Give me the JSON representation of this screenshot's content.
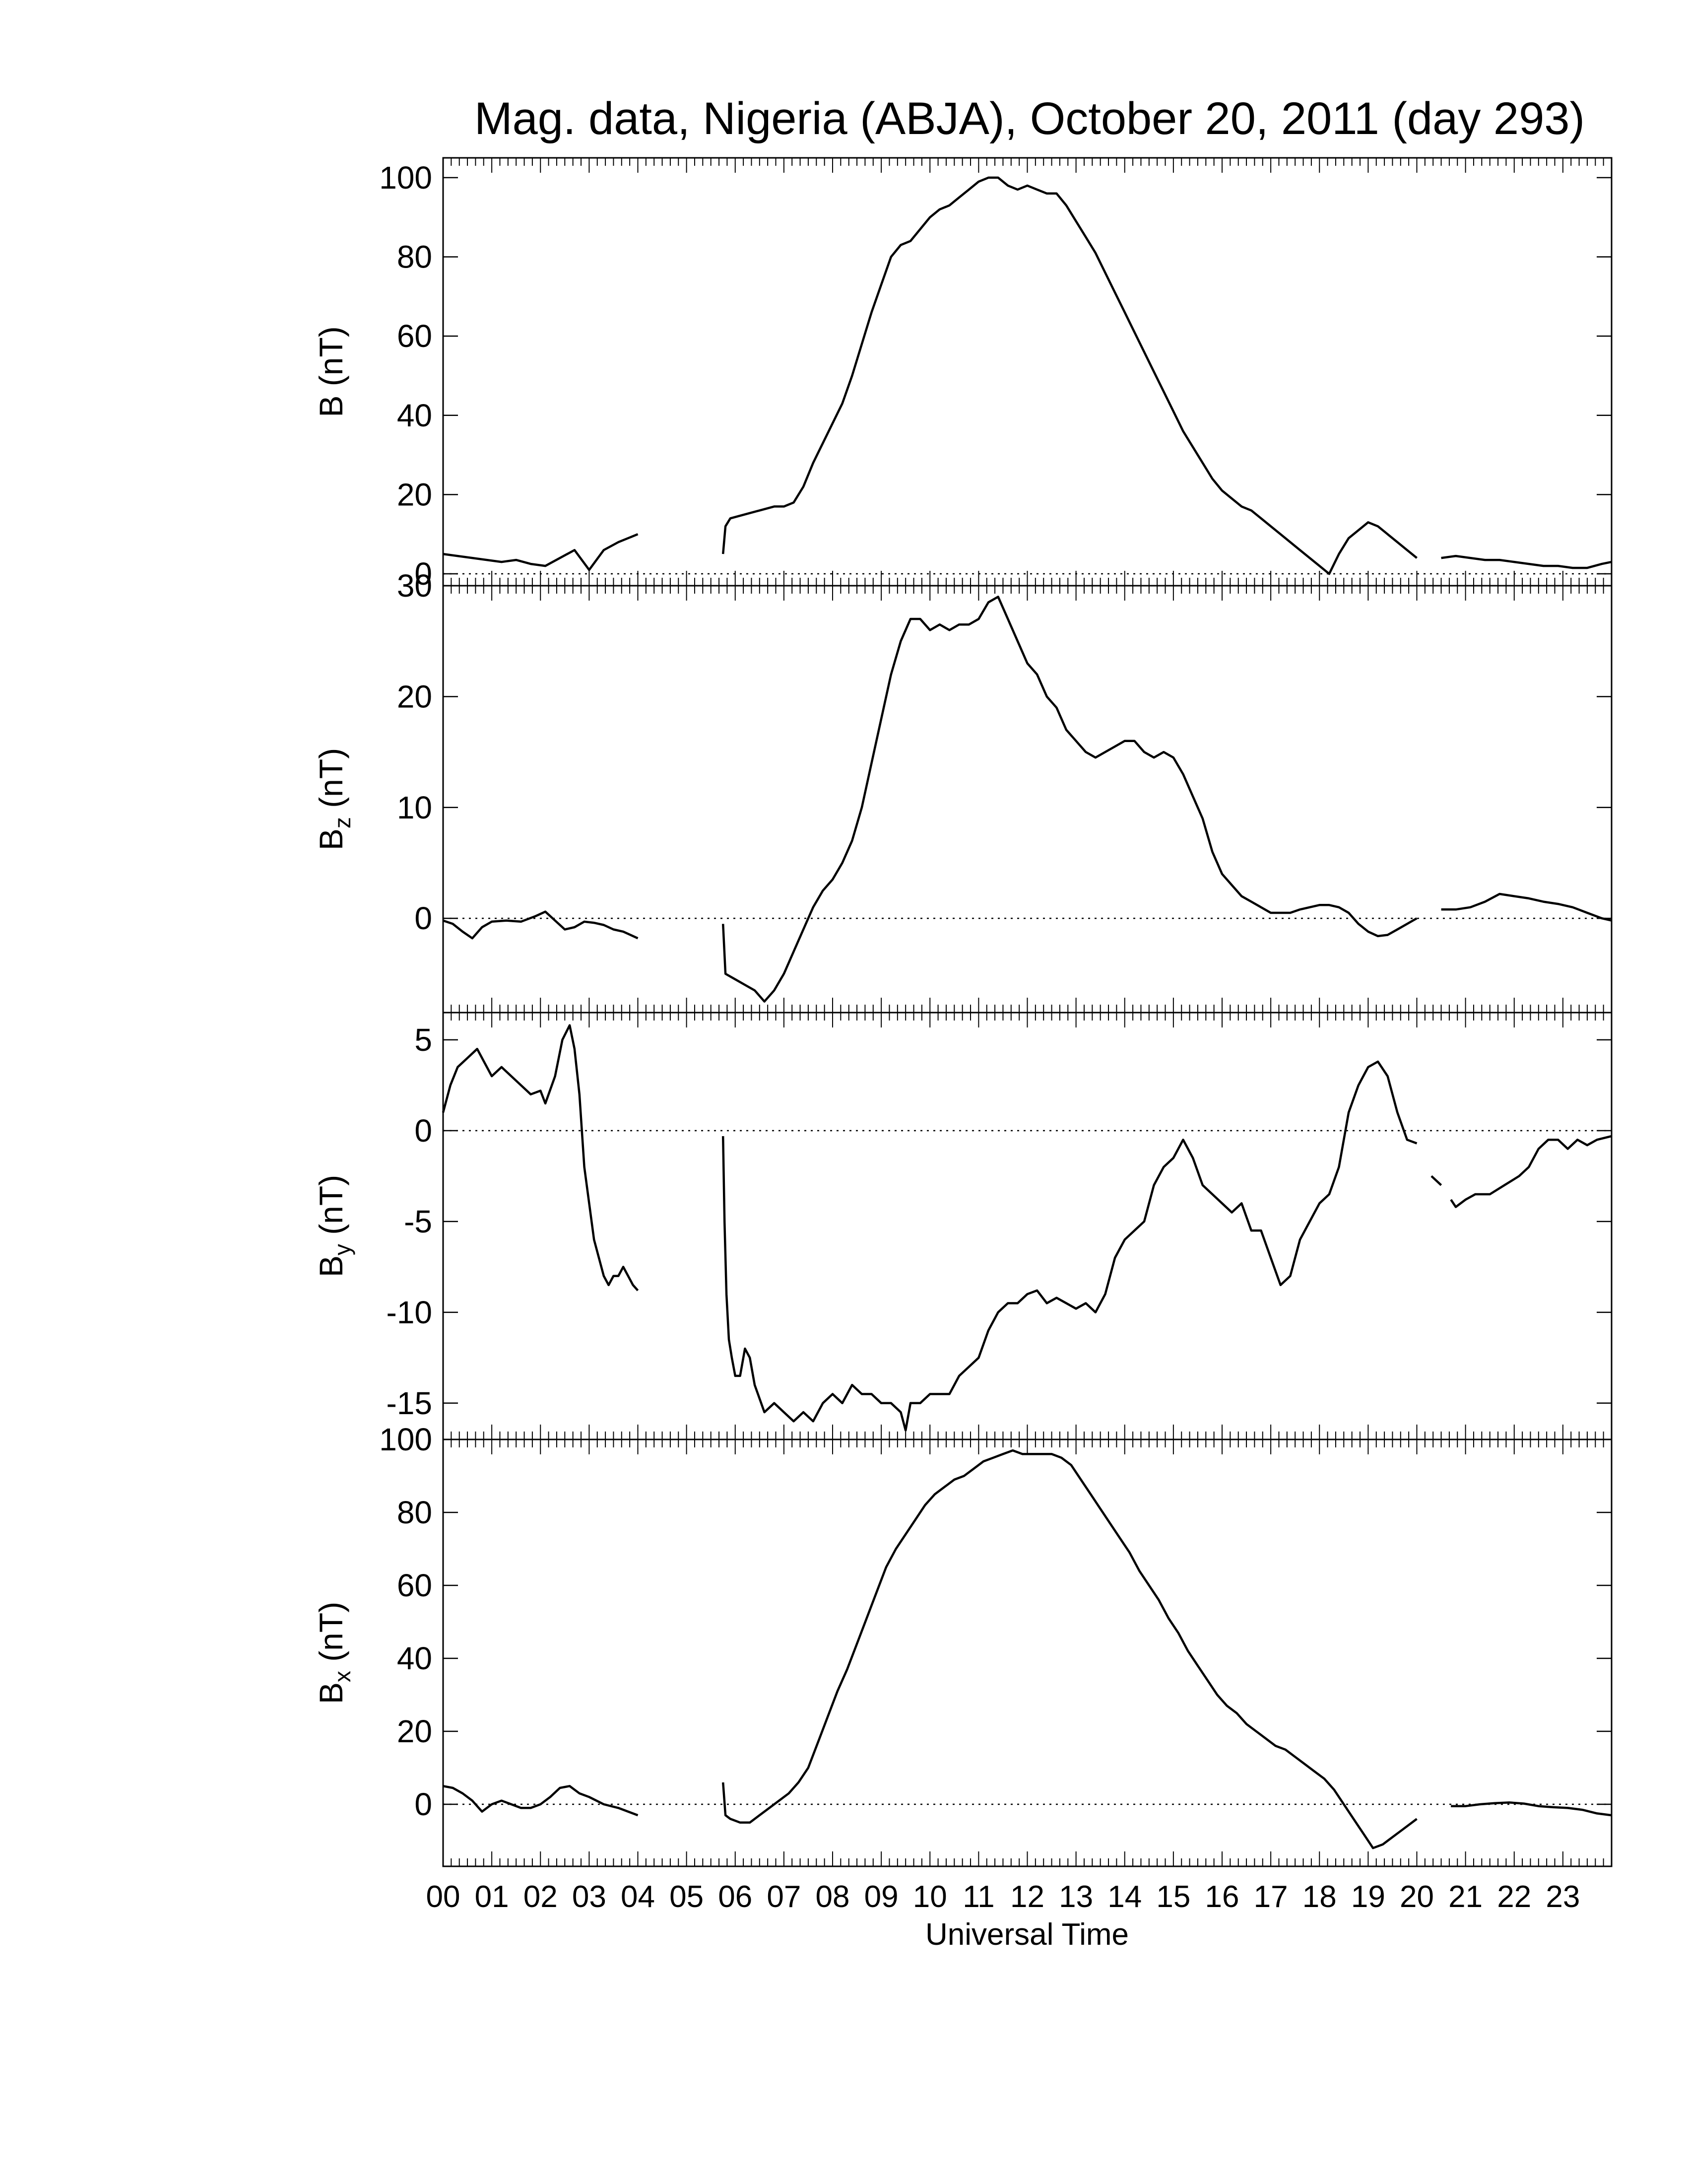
{
  "chart_data": [
    {
      "type": "line",
      "title": "Mag. data, Nigeria (ABJA), October 20, 2011 (day 293)",
      "ylabel": {
        "main": "B",
        "sub": "",
        "unit": " (nT)"
      },
      "ylim": [
        -3,
        105
      ],
      "yticks": [
        0,
        20,
        40,
        60,
        80,
        100
      ],
      "zero_line": true,
      "segments": [
        {
          "x": [
            0.0,
            0.3,
            0.6,
            0.9,
            1.2,
            1.5,
            1.8,
            2.1,
            2.4,
            2.7,
            3.0,
            3.3,
            3.6,
            4.0
          ],
          "y": [
            5,
            4.5,
            4,
            3.5,
            3,
            3.5,
            2.5,
            2,
            4,
            6,
            1,
            6,
            8,
            10
          ]
        },
        {
          "x": [
            5.75,
            5.8,
            5.9,
            6.2,
            6.5,
            6.8,
            7.0,
            7.2,
            7.4,
            7.6,
            7.8,
            8.0,
            8.2,
            8.4,
            8.6,
            8.8,
            9.0,
            9.2,
            9.4,
            9.6,
            9.8,
            10.0,
            10.2,
            10.4,
            10.6,
            10.8,
            11.0,
            11.2,
            11.4,
            11.6,
            11.8,
            12.0,
            12.2,
            12.4,
            12.6,
            12.8,
            13.0,
            13.2,
            13.4,
            13.6,
            13.8,
            14.0,
            14.2,
            14.4,
            14.6,
            14.8,
            15.0,
            15.2,
            15.4,
            15.6,
            15.8,
            16.0,
            16.2,
            16.4,
            16.6,
            16.8,
            17.0,
            17.2,
            17.4,
            17.6,
            17.8,
            18.0,
            18.2,
            18.4,
            18.6,
            18.8,
            19.0,
            19.2,
            19.4,
            19.6,
            19.8,
            20.0
          ],
          "y": [
            5,
            12,
            14,
            15,
            16,
            17,
            17,
            18,
            22,
            28,
            33,
            38,
            43,
            50,
            58,
            66,
            73,
            80,
            83,
            84,
            87,
            90,
            92,
            93,
            95,
            97,
            99,
            100,
            100,
            98,
            97,
            98,
            97,
            96,
            96,
            93,
            89,
            85,
            81,
            76,
            71,
            66,
            61,
            56,
            51,
            46,
            41,
            36,
            32,
            28,
            24,
            21,
            19,
            17,
            16,
            14,
            12,
            10,
            8,
            6,
            4,
            2,
            0,
            5,
            9,
            11,
            13,
            12,
            10,
            8,
            6,
            4
          ]
        },
        {
          "x": [
            20.5,
            20.8,
            21.1,
            21.4,
            21.7,
            22.0,
            22.3,
            22.6,
            22.9,
            23.2,
            23.5,
            23.8,
            24.0
          ],
          "y": [
            4,
            4.5,
            4,
            3.5,
            3.5,
            3,
            2.5,
            2,
            2,
            1.5,
            1.5,
            2.5,
            3
          ]
        }
      ]
    },
    {
      "type": "line",
      "ylabel": {
        "main": "B",
        "sub": "z",
        "unit": " (nT)"
      },
      "ylim": [
        -8.5,
        30
      ],
      "yticks": [
        0,
        10,
        20,
        30
      ],
      "zero_line": true,
      "segments": [
        {
          "x": [
            0.0,
            0.2,
            0.4,
            0.6,
            0.8,
            1.0,
            1.3,
            1.6,
            1.9,
            2.1,
            2.3,
            2.5,
            2.7,
            2.9,
            3.1,
            3.3,
            3.5,
            3.7,
            4.0
          ],
          "y": [
            -0.2,
            -0.5,
            -1.2,
            -1.8,
            -0.8,
            -0.3,
            -0.2,
            -0.3,
            0.2,
            0.6,
            -0.2,
            -1.0,
            -0.8,
            -0.3,
            -0.4,
            -0.6,
            -1.0,
            -1.2,
            -1.8
          ]
        },
        {
          "x": [
            5.75,
            5.8,
            6.0,
            6.2,
            6.4,
            6.6,
            6.8,
            7.0,
            7.2,
            7.4,
            7.6,
            7.8,
            8.0,
            8.2,
            8.4,
            8.6,
            8.8,
            9.0,
            9.2,
            9.4,
            9.6,
            9.8,
            10.0,
            10.2,
            10.4,
            10.6,
            10.8,
            11.0,
            11.2,
            11.4,
            11.6,
            11.8,
            12.0,
            12.2,
            12.4,
            12.6,
            12.8,
            13.0,
            13.2,
            13.4,
            13.6,
            13.8,
            14.0,
            14.2,
            14.4,
            14.6,
            14.8,
            15.0,
            15.2,
            15.4,
            15.6,
            15.8,
            16.0,
            16.2,
            16.4,
            16.6,
            16.8,
            17.0,
            17.2,
            17.4,
            17.6,
            17.8,
            18.0,
            18.2,
            18.4,
            18.6,
            18.8,
            19.0,
            19.2,
            19.4,
            19.6,
            19.8,
            20.0
          ],
          "y": [
            -0.5,
            -5,
            -5.5,
            -6,
            -6.5,
            -7.5,
            -6.5,
            -5,
            -3,
            -1,
            1,
            2.5,
            3.5,
            5,
            7,
            10,
            14,
            18,
            22,
            25,
            27,
            27,
            26,
            26.5,
            26,
            26.5,
            26.5,
            27,
            28.5,
            29,
            27,
            25,
            23,
            22,
            20,
            19,
            17,
            16,
            15,
            14.5,
            15,
            15.5,
            16,
            16,
            15,
            14.5,
            15,
            14.5,
            13,
            11,
            9,
            6,
            4,
            3,
            2,
            1.5,
            1,
            0.5,
            0.5,
            0.5,
            0.8,
            1,
            1.2,
            1.2,
            1,
            0.5,
            -0.5,
            -1.2,
            -1.6,
            -1.5,
            -1,
            -0.5,
            0
          ]
        },
        {
          "x": [
            20.5,
            20.8,
            21.1,
            21.4,
            21.7,
            22.0,
            22.3,
            22.6,
            22.9,
            23.2,
            23.5,
            23.8,
            24.0
          ],
          "y": [
            0.8,
            0.8,
            1,
            1.5,
            2.2,
            2,
            1.8,
            1.5,
            1.3,
            1,
            0.5,
            0,
            -0.2
          ]
        }
      ]
    },
    {
      "type": "line",
      "ylabel": {
        "main": "B",
        "sub": "y",
        "unit": " (nT)"
      },
      "ylim": [
        -17,
        6.5
      ],
      "yticks": [
        -15,
        -10,
        -5,
        0,
        5
      ],
      "zero_line": true,
      "segments": [
        {
          "x": [
            0.0,
            0.15,
            0.3,
            0.5,
            0.7,
            0.9,
            1.0,
            1.2,
            1.4,
            1.6,
            1.8,
            2.0,
            2.1,
            2.3,
            2.45,
            2.6,
            2.7,
            2.8,
            2.9,
            3.0,
            3.1,
            3.2,
            3.3,
            3.4,
            3.5,
            3.6,
            3.7,
            3.8,
            3.9,
            4.0
          ],
          "y": [
            1,
            2.5,
            3.5,
            4,
            4.5,
            3.5,
            3,
            3.5,
            3,
            2.5,
            2,
            2.2,
            1.5,
            3,
            5,
            5.8,
            4.5,
            2,
            -2,
            -4,
            -6,
            -7,
            -8,
            -8.5,
            -8,
            -8,
            -7.5,
            -8,
            -8.5,
            -8.8
          ]
        },
        {
          "x": [
            5.75,
            5.78,
            5.82,
            5.87,
            5.93,
            6.0,
            6.1,
            6.2,
            6.3,
            6.4,
            6.6,
            6.8,
            7.0,
            7.2,
            7.4,
            7.6,
            7.8,
            8.0,
            8.2,
            8.4,
            8.6,
            8.8,
            9.0,
            9.2,
            9.4,
            9.5,
            9.6,
            9.8,
            10.0,
            10.2,
            10.4,
            10.6,
            10.8,
            11.0,
            11.2,
            11.4,
            11.6,
            11.8,
            12.0,
            12.2,
            12.4,
            12.6,
            12.8,
            13.0,
            13.2,
            13.4,
            13.6,
            13.8,
            14.0,
            14.2,
            14.4,
            14.6,
            14.8,
            15.0,
            15.2,
            15.4,
            15.6,
            15.8,
            16.0,
            16.2,
            16.4,
            16.6,
            16.8,
            17.0,
            17.2,
            17.4,
            17.6,
            17.8,
            18.0,
            18.2,
            18.4,
            18.6,
            18.8,
            19.0,
            19.2,
            19.4,
            19.6,
            19.8,
            20.0
          ],
          "y": [
            -0.3,
            -5,
            -9,
            -11.5,
            -12.5,
            -13.5,
            -13.5,
            -12,
            -12.5,
            -14,
            -15.5,
            -15,
            -15.5,
            -16,
            -15.5,
            -16,
            -15,
            -14.5,
            -15,
            -14,
            -14.5,
            -14.5,
            -15,
            -15,
            -15.5,
            -16.5,
            -15,
            -15,
            -14.5,
            -14.5,
            -14.5,
            -13.5,
            -13,
            -12.5,
            -11,
            -10,
            -9.5,
            -9.5,
            -9,
            -8.8,
            -9.5,
            -9.2,
            -9.5,
            -9.8,
            -9.5,
            -10,
            -9,
            -7,
            -6,
            -5.5,
            -5,
            -3,
            -2,
            -1.5,
            -0.5,
            -1.5,
            -3,
            -3.5,
            -4,
            -4.5,
            -4,
            -5.5,
            -5.5,
            -7,
            -8.5,
            -8,
            -6,
            -5,
            -4,
            -3.5,
            -2,
            1,
            2.5,
            3.5,
            3.8,
            3,
            1,
            -0.5,
            -0.7
          ]
        },
        {
          "x": [
            20.3,
            20.5
          ],
          "y": [
            -2.5,
            -3
          ]
        },
        {
          "x": [
            20.7,
            20.8,
            21.0,
            21.2,
            21.5,
            21.8,
            22.1,
            22.3,
            22.5,
            22.7,
            22.9,
            23.1,
            23.3,
            23.5,
            23.7,
            24.0
          ],
          "y": [
            -3.8,
            -4.2,
            -3.8,
            -3.5,
            -3.5,
            -3.0,
            -2.5,
            -2.0,
            -1.0,
            -0.5,
            -0.5,
            -1.0,
            -0.5,
            -0.8,
            -0.5,
            -0.3
          ]
        }
      ]
    },
    {
      "type": "line",
      "ylabel": {
        "main": "B",
        "sub": "x",
        "unit": " (nT)"
      },
      "ylim": [
        -17,
        100
      ],
      "yticks": [
        0,
        20,
        40,
        60,
        80,
        100
      ],
      "zero_line": true,
      "show_xticklabels": true,
      "xlabel": "Universal Time",
      "segments": [
        {
          "x": [
            0.0,
            0.2,
            0.4,
            0.6,
            0.8,
            1.0,
            1.2,
            1.4,
            1.6,
            1.8,
            2.0,
            2.2,
            2.4,
            2.6,
            2.8,
            3.0,
            3.3,
            3.6,
            4.0
          ],
          "y": [
            5,
            4.5,
            3,
            1,
            -2,
            0,
            1,
            0,
            -1,
            -1,
            0,
            2,
            4.5,
            5,
            3,
            2,
            0,
            -1,
            -3
          ]
        },
        {
          "x": [
            5.75,
            5.8,
            5.9,
            6.1,
            6.3,
            6.5,
            6.7,
            6.9,
            7.1,
            7.3,
            7.5,
            7.7,
            7.9,
            8.1,
            8.3,
            8.5,
            8.7,
            8.9,
            9.1,
            9.3,
            9.5,
            9.7,
            9.9,
            10.1,
            10.3,
            10.5,
            10.7,
            10.9,
            11.1,
            11.3,
            11.5,
            11.7,
            11.9,
            12.1,
            12.3,
            12.5,
            12.7,
            12.9,
            13.1,
            13.3,
            13.5,
            13.7,
            13.9,
            14.1,
            14.3,
            14.5,
            14.7,
            14.9,
            15.1,
            15.3,
            15.5,
            15.7,
            15.9,
            16.1,
            16.3,
            16.5,
            16.7,
            16.9,
            17.1,
            17.3,
            17.5,
            17.7,
            17.9,
            18.1,
            18.3,
            18.5,
            18.7,
            18.9,
            19.1,
            19.3,
            19.5,
            19.7,
            20.0
          ],
          "y": [
            6,
            -3,
            -4,
            -5,
            -5,
            -3,
            -1,
            1,
            3,
            6,
            10,
            17,
            24,
            31,
            37,
            44,
            51,
            58,
            65,
            70,
            74,
            78,
            82,
            85,
            87,
            89,
            90,
            92,
            94,
            95,
            96,
            97,
            96,
            96,
            96,
            96,
            95,
            93,
            89,
            85,
            81,
            77,
            73,
            69,
            64,
            60,
            56,
            51,
            47,
            42,
            38,
            34,
            30,
            27,
            25,
            22,
            20,
            18,
            16,
            15,
            13,
            11,
            9,
            7,
            4,
            0,
            -4,
            -8,
            -12,
            -11,
            -9,
            -7,
            -4
          ]
        },
        {
          "x": [
            20.7,
            21.0,
            21.3,
            21.6,
            21.9,
            22.2,
            22.5,
            22.8,
            23.1,
            23.4,
            23.7,
            24.0
          ],
          "y": [
            -0.5,
            -0.5,
            0,
            0.3,
            0.5,
            0.2,
            -0.5,
            -0.8,
            -1,
            -1.5,
            -2.5,
            -3
          ]
        }
      ]
    }
  ]
}
